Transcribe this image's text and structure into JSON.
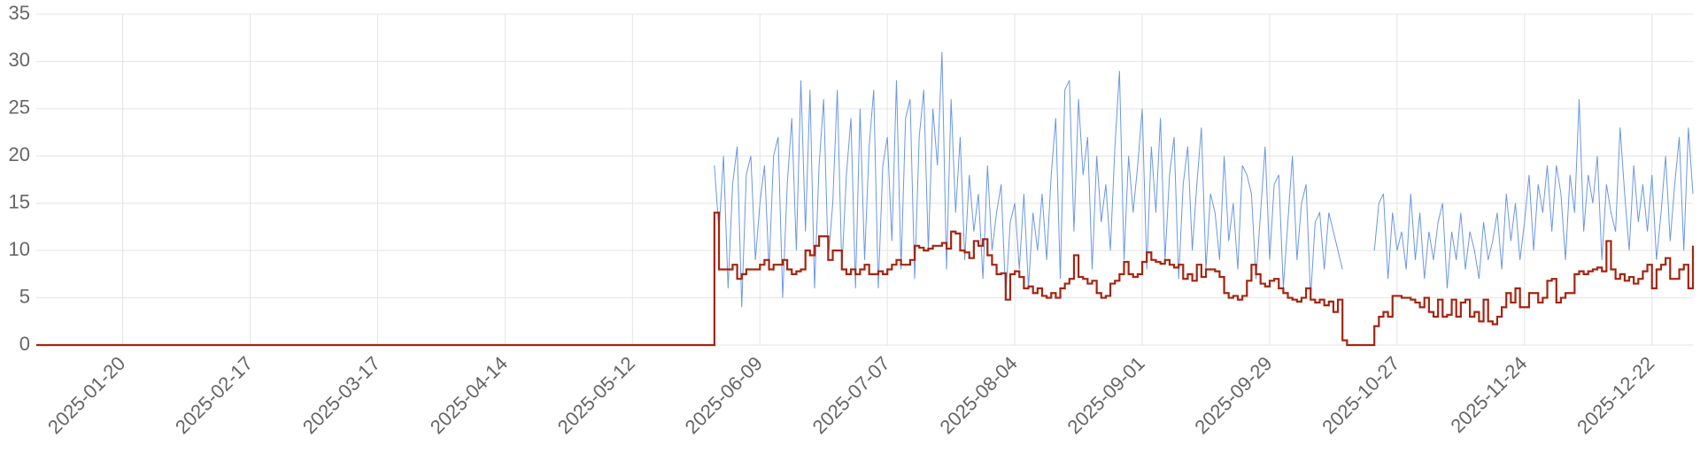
{
  "chart_data": {
    "type": "line",
    "x": [
      "2025-01-01",
      "2025-05-29",
      "2025-05-30",
      "2025-05-31",
      "2025-06-01",
      "2025-06-02",
      "2025-06-03",
      "2025-06-04",
      "2025-06-05",
      "2025-06-06",
      "2025-06-07",
      "2025-06-08",
      "2025-06-09",
      "2025-06-10",
      "2025-06-11",
      "2025-06-12",
      "2025-06-13",
      "2025-06-14",
      "2025-06-15",
      "2025-06-16",
      "2025-06-17",
      "2025-06-18",
      "2025-06-19",
      "2025-06-20",
      "2025-06-21",
      "2025-06-22",
      "2025-06-23",
      "2025-06-24",
      "2025-06-25",
      "2025-06-26",
      "2025-06-27",
      "2025-06-28",
      "2025-06-29",
      "2025-06-30",
      "2025-07-01",
      "2025-07-02",
      "2025-07-03",
      "2025-07-04",
      "2025-07-05",
      "2025-07-06",
      "2025-07-07",
      "2025-07-08",
      "2025-07-09",
      "2025-07-10",
      "2025-07-11",
      "2025-07-12",
      "2025-07-13",
      "2025-07-14",
      "2025-07-15",
      "2025-07-16",
      "2025-07-17",
      "2025-07-18",
      "2025-07-19",
      "2025-07-20",
      "2025-07-21",
      "2025-07-22",
      "2025-07-23",
      "2025-07-24",
      "2025-07-25",
      "2025-07-26",
      "2025-07-27",
      "2025-07-28",
      "2025-07-29",
      "2025-07-30",
      "2025-07-31",
      "2025-08-01",
      "2025-08-02",
      "2025-08-03",
      "2025-08-04",
      "2025-08-05",
      "2025-08-06",
      "2025-08-07",
      "2025-08-08",
      "2025-08-09",
      "2025-08-10",
      "2025-08-11",
      "2025-08-12",
      "2025-08-13",
      "2025-08-14",
      "2025-08-15",
      "2025-08-16",
      "2025-08-17",
      "2025-08-18",
      "2025-08-19",
      "2025-08-20",
      "2025-08-21",
      "2025-08-22",
      "2025-08-23",
      "2025-08-24",
      "2025-08-25",
      "2025-08-26",
      "2025-08-27",
      "2025-08-28",
      "2025-08-29",
      "2025-08-30",
      "2025-08-31",
      "2025-09-01",
      "2025-09-02",
      "2025-09-03",
      "2025-09-04",
      "2025-09-05",
      "2025-09-06",
      "2025-09-07",
      "2025-09-08",
      "2025-09-09",
      "2025-09-10",
      "2025-09-11",
      "2025-09-12",
      "2025-09-13",
      "2025-09-14",
      "2025-09-15",
      "2025-09-16",
      "2025-09-17",
      "2025-09-18",
      "2025-09-19",
      "2025-09-20",
      "2025-09-21",
      "2025-09-22",
      "2025-09-23",
      "2025-09-24",
      "2025-09-25",
      "2025-09-26",
      "2025-09-27",
      "2025-09-28",
      "2025-09-29",
      "2025-09-30",
      "2025-10-01",
      "2025-10-02",
      "2025-10-03",
      "2025-10-04",
      "2025-10-05",
      "2025-10-06",
      "2025-10-07",
      "2025-10-08",
      "2025-10-09",
      "2025-10-10",
      "2025-10-11",
      "2025-10-12",
      "2025-10-13",
      "2025-10-14",
      "2025-10-15",
      "2025-10-16",
      "2025-10-17",
      "2025-10-18",
      "2025-10-19",
      "2025-10-20",
      "2025-10-21",
      "2025-10-22",
      "2025-10-23",
      "2025-10-24",
      "2025-10-25",
      "2025-10-26",
      "2025-10-27",
      "2025-10-28",
      "2025-10-29",
      "2025-10-30",
      "2025-10-31",
      "2025-11-01",
      "2025-11-02",
      "2025-11-03",
      "2025-11-04",
      "2025-11-05",
      "2025-11-06",
      "2025-11-07",
      "2025-11-08",
      "2025-11-09",
      "2025-11-10",
      "2025-11-11",
      "2025-11-12",
      "2025-11-13",
      "2025-11-14",
      "2025-11-15",
      "2025-11-16",
      "2025-11-17",
      "2025-11-18",
      "2025-11-19",
      "2025-11-20",
      "2025-11-21",
      "2025-11-22",
      "2025-11-23",
      "2025-11-24",
      "2025-11-25",
      "2025-11-26",
      "2025-11-27",
      "2025-11-28",
      "2025-11-29",
      "2025-11-30",
      "2025-12-01",
      "2025-12-02",
      "2025-12-03",
      "2025-12-04",
      "2025-12-05",
      "2025-12-06",
      "2025-12-07",
      "2025-12-08",
      "2025-12-09",
      "2025-12-10",
      "2025-12-11",
      "2025-12-12",
      "2025-12-13",
      "2025-12-14",
      "2025-12-15",
      "2025-12-16",
      "2025-12-17",
      "2025-12-18",
      "2025-12-19",
      "2025-12-20",
      "2025-12-21",
      "2025-12-22",
      "2025-12-23",
      "2025-12-24",
      "2025-12-25",
      "2025-12-26",
      "2025-12-27",
      "2025-12-28",
      "2025-12-29",
      "2025-12-30",
      "2025-12-31"
    ],
    "series": [
      {
        "color": "#6a97e3",
        "step": false,
        "values": [
          null,
          null,
          19,
          12,
          20,
          6,
          17,
          21,
          4,
          18,
          20,
          9,
          15,
          19,
          8,
          20,
          22,
          5,
          17,
          24,
          10,
          28,
          12,
          27,
          6,
          19,
          26,
          9,
          15,
          27,
          8,
          18,
          24,
          6,
          25,
          9,
          21,
          27,
          6,
          19,
          22,
          11,
          28,
          8,
          24,
          26,
          7,
          22,
          27,
          10,
          25,
          19,
          31,
          8,
          26,
          14,
          22,
          9,
          18,
          12,
          16,
          7,
          19,
          10,
          14,
          17,
          5,
          13,
          15,
          8,
          16,
          6,
          14,
          10,
          16,
          9,
          18,
          24,
          7,
          27,
          28,
          12,
          26,
          18,
          22,
          8,
          20,
          13,
          17,
          10,
          21,
          29,
          9,
          20,
          14,
          19,
          25,
          8,
          21,
          14,
          24,
          9,
          18,
          22,
          7,
          17,
          21,
          10,
          17,
          23,
          8,
          16,
          14,
          9,
          20,
          11,
          15,
          8,
          19,
          18,
          16,
          7,
          14,
          21,
          9,
          17,
          18,
          6,
          13,
          20,
          9,
          15,
          17,
          5,
          13,
          14,
          8,
          14,
          12,
          10,
          8,
          null,
          null,
          null,
          null,
          null,
          null,
          10,
          15,
          16,
          7,
          14,
          10,
          12,
          8,
          16,
          9,
          14,
          7,
          12,
          9,
          13,
          15,
          6,
          12,
          9,
          14,
          8,
          12,
          10,
          7,
          13,
          9,
          11,
          14,
          8,
          16,
          11,
          15,
          9,
          13,
          18,
          10,
          17,
          14,
          19,
          12,
          19,
          16,
          9,
          18,
          14,
          26,
          12,
          18,
          15,
          20,
          9,
          17,
          14,
          12,
          23,
          16,
          10,
          19,
          13,
          17,
          12,
          18,
          9,
          14,
          20,
          11,
          17,
          22,
          10,
          23,
          16
        ]
      },
      {
        "color": "#a32511",
        "step": true,
        "values": [
          0,
          0,
          14,
          8,
          8,
          8,
          8.5,
          7,
          7.5,
          8,
          8,
          8,
          8.5,
          9,
          8,
          8.5,
          8.5,
          9,
          8,
          7.5,
          7.8,
          8,
          10,
          9.5,
          10.5,
          11.5,
          11.5,
          9,
          10,
          10,
          8,
          7.5,
          8,
          7.5,
          8,
          8.5,
          7.5,
          7.5,
          7.8,
          7.5,
          8,
          8.5,
          9,
          8.5,
          8.5,
          9,
          10.5,
          10.3,
          10,
          10.2,
          10.5,
          10.5,
          10.8,
          10.2,
          12,
          11.8,
          10,
          9.8,
          9.2,
          11,
          10.5,
          11.2,
          9.5,
          8.5,
          7.5,
          7.6,
          4.8,
          7.5,
          7.8,
          7.2,
          6,
          6.2,
          5.5,
          6,
          5.2,
          5,
          5.5,
          5,
          6,
          6.5,
          7,
          9.5,
          7.2,
          7,
          6.5,
          6.8,
          5.5,
          5,
          5.2,
          6.5,
          6.8,
          7.5,
          8.8,
          7.5,
          7.2,
          7.5,
          8.8,
          9.8,
          9,
          8.8,
          8.6,
          9,
          8.5,
          8.2,
          8.5,
          7,
          7.5,
          6.8,
          8.5,
          7.2,
          8,
          8,
          7.8,
          7.2,
          5.5,
          5,
          5.2,
          4.8,
          5.2,
          6.8,
          8.5,
          7.5,
          6.5,
          6.2,
          6.8,
          7,
          6,
          5.5,
          5,
          4.8,
          4.6,
          5,
          6,
          4.8,
          4.5,
          4.8,
          4.2,
          4.6,
          3.5,
          4.8,
          0.5,
          0,
          0,
          0,
          0,
          0,
          0,
          2,
          3,
          3.5,
          3,
          5.2,
          5.2,
          5,
          5,
          4.8,
          4.5,
          4,
          5,
          3.5,
          3,
          4.8,
          3,
          3.2,
          4.8,
          3,
          4.5,
          4.8,
          3,
          3.5,
          2.5,
          4.8,
          2.5,
          2.2,
          3,
          4,
          5.5,
          4.5,
          6,
          4,
          4,
          5.5,
          5.5,
          4.5,
          5,
          6.8,
          7,
          4.5,
          5,
          5.5,
          5.5,
          7.5,
          7.8,
          7.5,
          7.8,
          8,
          8.2,
          7.8,
          11,
          8,
          7,
          7.5,
          6.8,
          7.2,
          6.5,
          7,
          7.8,
          8.5,
          6,
          8,
          8.5,
          9.2,
          7,
          7,
          8,
          8.5,
          6,
          10.5
        ]
      }
    ],
    "xlim": [
      "2025-01-01",
      "2025-12-31"
    ],
    "xticks": [
      "2025-01-20",
      "2025-02-17",
      "2025-03-17",
      "2025-04-14",
      "2025-05-12",
      "2025-06-09",
      "2025-07-07",
      "2025-08-04",
      "2025-09-01",
      "2025-09-29",
      "2025-10-27",
      "2025-11-24",
      "2025-12-22"
    ],
    "ylim": [
      0,
      35
    ],
    "yticks": [
      0,
      5,
      10,
      15,
      20,
      25,
      30,
      35
    ],
    "grid": true
  }
}
